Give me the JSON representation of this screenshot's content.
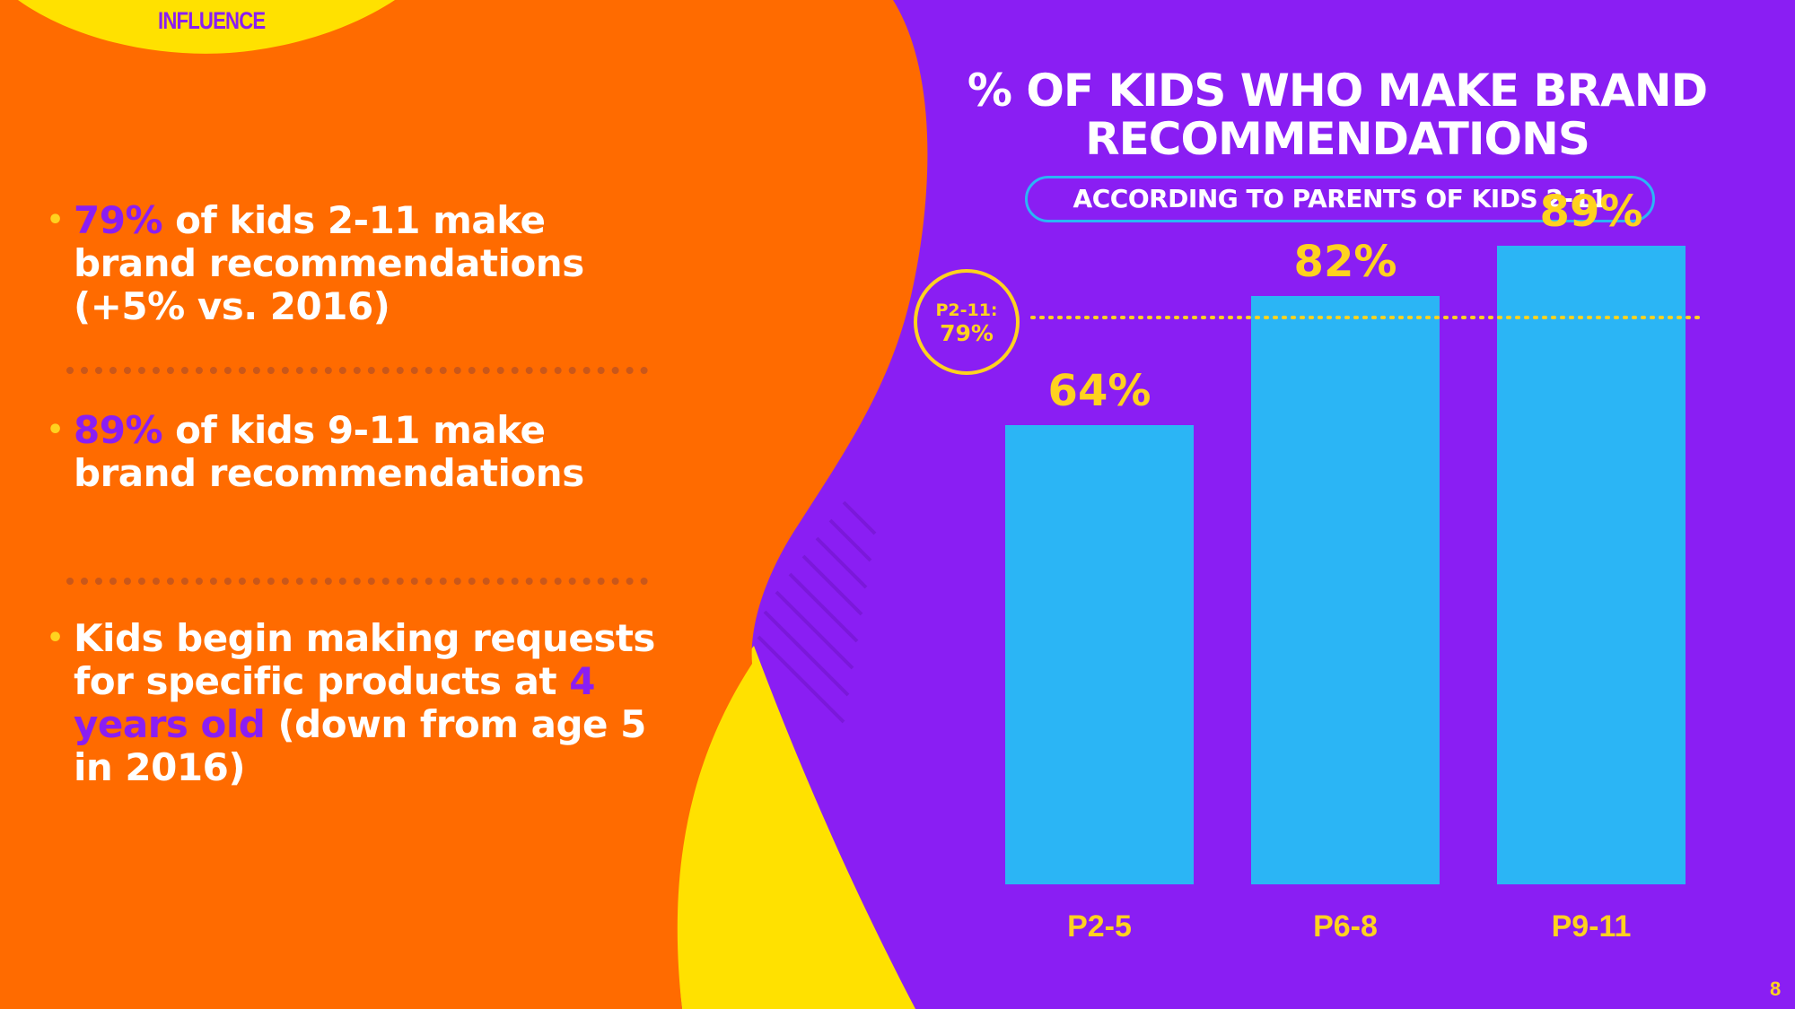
{
  "section_tag": "INFLUENCE",
  "bullets": [
    {
      "highlight": "79%",
      "text_before": "",
      "text_after": " of kids 2-11 make brand recommendations (+5% vs. 2016)"
    },
    {
      "highlight": "89%",
      "text_before": "",
      "text_after": " of kids 9-11 make brand recommendations"
    },
    {
      "highlight": "4 years old",
      "text_before": "Kids begin making requests for specific products at ",
      "text_after": " (down from age 5 in 2016)"
    }
  ],
  "page_number": "8",
  "colors": {
    "purple": "#8a1ef3",
    "orange": "#ff6b00",
    "yellow": "#ffd21f",
    "bar": "#2bb5f5",
    "white": "#ffffff"
  },
  "chart_data": {
    "type": "bar",
    "title": "% OF KIDS WHO MAKE BRAND RECOMMENDATIONS",
    "subtitle": "ACCORDING TO PARENTS OF KIDS 2-11",
    "categories": [
      "P2-5",
      "P6-8",
      "P9-11"
    ],
    "values": [
      64,
      82,
      89
    ],
    "data_labels": [
      "64%",
      "82%",
      "89%"
    ],
    "reference_line": {
      "value": 79,
      "label_line1": "P2-11:",
      "label_line2": "79%"
    },
    "ylim": [
      0,
      100
    ],
    "xlabel": "",
    "ylabel": "",
    "grid": false,
    "legend": "none"
  }
}
